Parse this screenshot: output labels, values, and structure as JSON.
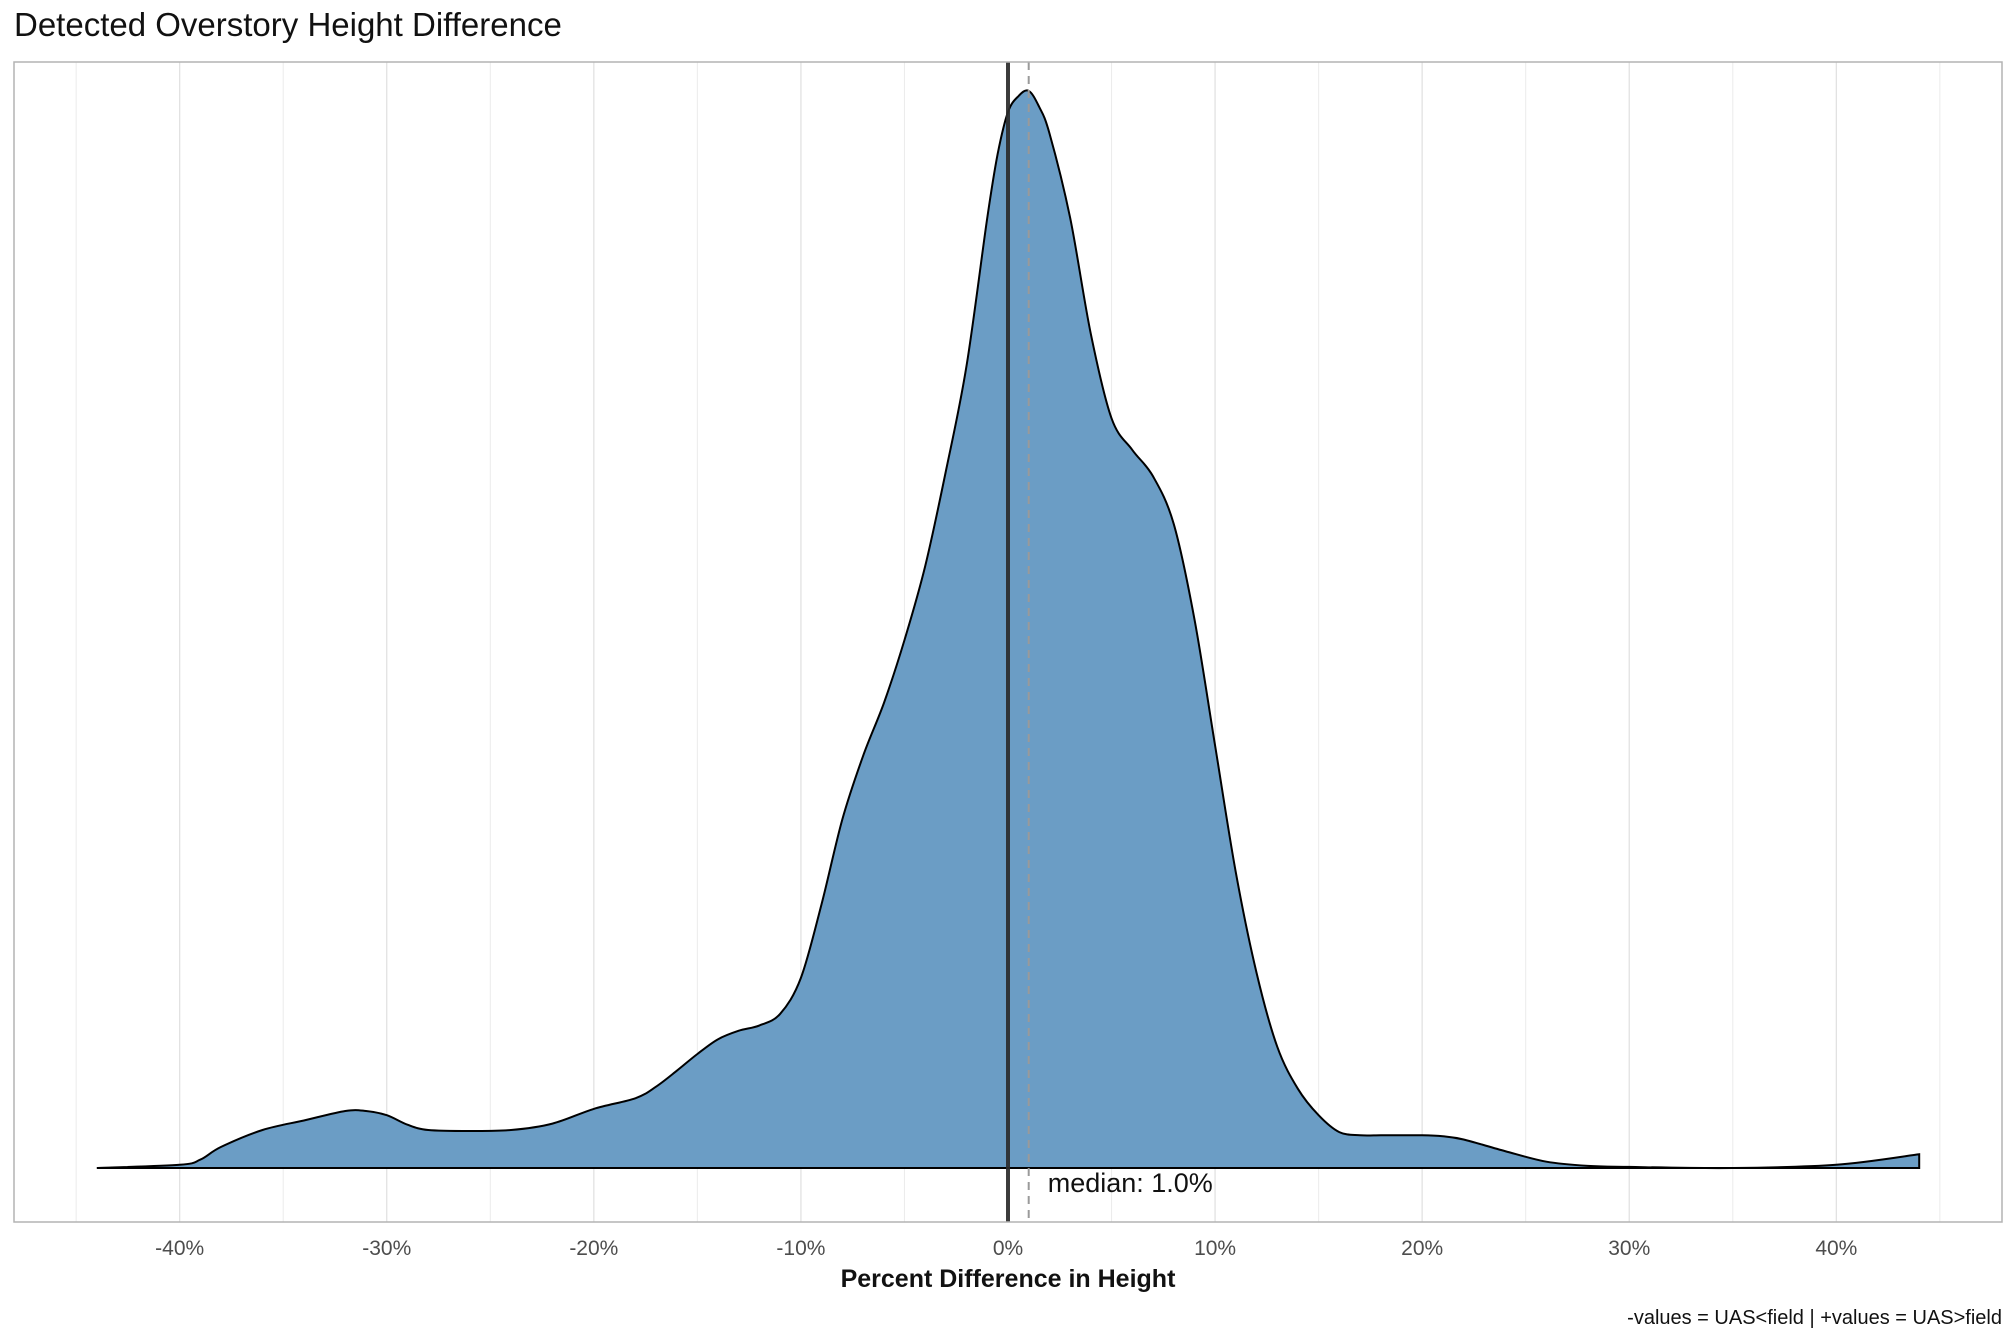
{
  "chart_data": {
    "type": "area",
    "title": "Detected Overstory Height Difference",
    "xlabel": "Percent Difference in Height",
    "ylabel": "",
    "caption": "-values = UAS<field | +values = UAS>field",
    "xlim": [
      -48,
      48
    ],
    "ylim": [
      0,
      1.06
    ],
    "x_tick_values": [
      -40,
      -30,
      -20,
      -10,
      0,
      10,
      20,
      30,
      40
    ],
    "x_tick_labels": [
      "-40%",
      "-30%",
      "-20%",
      "-10%",
      "0%",
      "10%",
      "20%",
      "30%",
      "40%"
    ],
    "grid": true,
    "fill_color": "#6b9dc5",
    "outline_color": "#000000",
    "reference_line": {
      "x": 0,
      "color": "#2b2b2b",
      "style": "solid"
    },
    "median_line": {
      "x": 1.0,
      "color": "#9a9a9a",
      "style": "dashed"
    },
    "annotation": "median: 1.0%",
    "density": {
      "x": [
        -44,
        -40,
        -39,
        -38,
        -36,
        -34,
        -32,
        -31,
        -30,
        -29,
        -28,
        -26,
        -24,
        -22,
        -20,
        -18,
        -17,
        -16,
        -15,
        -14,
        -13,
        -12,
        -11,
        -10,
        -9,
        -8,
        -7,
        -6,
        -5,
        -4,
        -3,
        -2,
        -1,
        -0.5,
        0,
        0.5,
        1,
        1.5,
        2,
        3,
        4,
        5,
        6,
        7,
        8,
        9,
        10,
        11,
        12,
        13,
        14,
        15,
        16,
        17,
        18,
        19,
        20,
        21,
        22,
        24,
        26,
        28,
        30,
        35,
        40,
        44
      ],
      "y": [
        0.0,
        0.003,
        0.008,
        0.02,
        0.036,
        0.045,
        0.054,
        0.054,
        0.05,
        0.041,
        0.036,
        0.035,
        0.036,
        0.042,
        0.056,
        0.066,
        0.077,
        0.092,
        0.108,
        0.122,
        0.13,
        0.135,
        0.146,
        0.18,
        0.25,
        0.33,
        0.39,
        0.44,
        0.5,
        0.57,
        0.66,
        0.76,
        0.9,
        0.96,
        1.0,
        1.015,
        1.02,
        1.005,
        0.98,
        0.9,
        0.79,
        0.71,
        0.68,
        0.655,
        0.61,
        0.52,
        0.4,
        0.28,
        0.185,
        0.115,
        0.075,
        0.05,
        0.034,
        0.031,
        0.031,
        0.031,
        0.031,
        0.03,
        0.027,
        0.016,
        0.006,
        0.002,
        0.001,
        0.0,
        0.003,
        0.013
      ]
    }
  }
}
